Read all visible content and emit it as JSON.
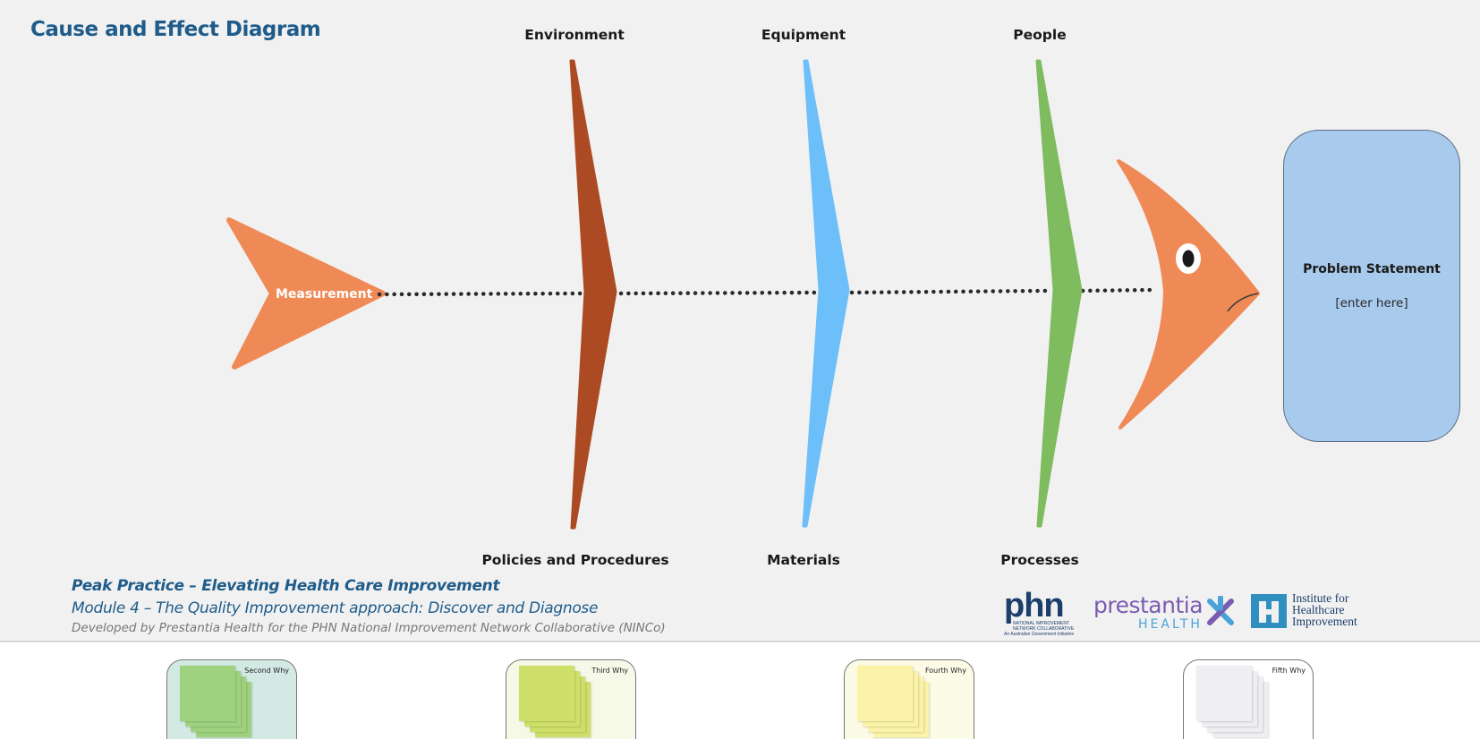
{
  "title": "Cause and Effect Diagram",
  "categories_top": [
    "Environment",
    "Equipment",
    "People"
  ],
  "categories_bottom": [
    "Policies and Procedures",
    "Materials",
    "Processes"
  ],
  "tail_label": "Measurement",
  "problem": {
    "title": "Problem Statement",
    "placeholder": "[enter here]"
  },
  "footer": {
    "line1": "Peak Practice – Elevating Health Care Improvement",
    "line2": "Module 4 – The Quality Improvement approach: Discover and Diagnose",
    "line3": "Developed by Prestantia Health for the PHN National Improvement Network Collaborative (NINCo)"
  },
  "logos": {
    "phn": "phn",
    "phn_sub1": "NATIONAL IMPROVEMENT",
    "phn_sub2": "NETWORK COLLABORATIVE",
    "phn_sub3": "An Australian Government Initiative",
    "prestantia": "prestantia",
    "prestantia_sub": "HEALTH",
    "ihi_line1": "Institute for",
    "ihi_line2": "Healthcare",
    "ihi_line3": "Improvement"
  },
  "why_cards": [
    {
      "label": "Second Why",
      "bg": "#d3e9e4",
      "note": "#9fd27f"
    },
    {
      "label": "Third Why",
      "bg": "#f6f9e8",
      "note": "#cfe06a"
    },
    {
      "label": "Fourth Why",
      "bg": "#fcfbe6",
      "note": "#fbf4a8"
    },
    {
      "label": "Fifth Why",
      "bg": "#ffffff",
      "note": "#eeeef3"
    }
  ],
  "colors": {
    "title": "#1f5c8a",
    "fish_orange": "#ef8a56",
    "bone_environment": "#ac4a23",
    "bone_equipment": "#6cbff8",
    "bone_people": "#7fbb5f",
    "problem_box": "#a8caec"
  }
}
